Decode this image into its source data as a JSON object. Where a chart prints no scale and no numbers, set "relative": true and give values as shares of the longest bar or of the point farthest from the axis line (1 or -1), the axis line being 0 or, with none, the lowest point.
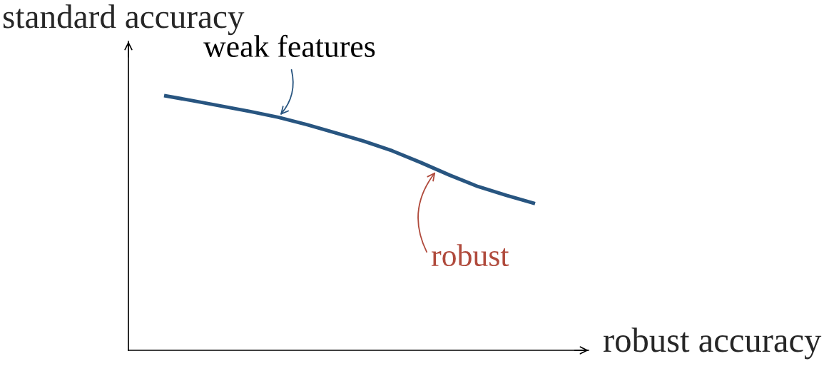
{
  "chart_data": {
    "type": "line",
    "relative": true,
    "xlabel": "robust accuracy",
    "ylabel": "standard accuracy",
    "categories": [
      null,
      null,
      null,
      null,
      null,
      null,
      null,
      null,
      null,
      null,
      null,
      null,
      null,
      null
    ],
    "series": [
      {
        "color": "#285580",
        "values": [
          1.0,
          0.98,
          0.959,
          0.938,
          0.915,
          0.886,
          0.854,
          0.821,
          0.783,
          0.737,
          0.688,
          0.643,
          0.608,
          0.576
        ]
      }
    ],
    "annotations": [
      {
        "text": "weak features",
        "y": 0.915
      },
      "robust"
    ]
  }
}
